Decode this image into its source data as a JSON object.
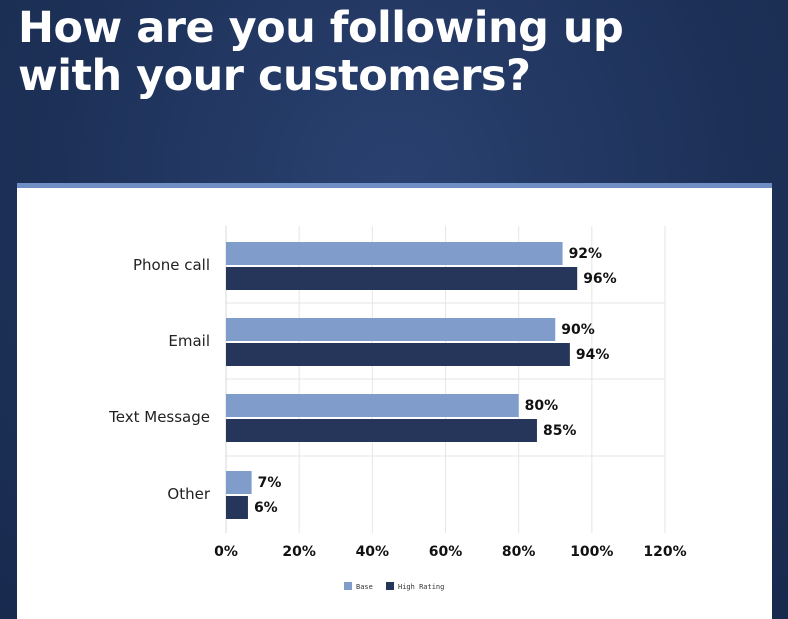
{
  "page": {
    "title_line1": "How are you following up",
    "title_line2": "with your customers?"
  },
  "colors": {
    "base": "#7f9ccb",
    "high_rating": "#26365a",
    "grid": "#e6e6e6"
  },
  "chart_data": {
    "type": "bar",
    "orientation": "horizontal",
    "categories": [
      "Phone call",
      "Email",
      "Text Message",
      "Other"
    ],
    "series": [
      {
        "name": "Base",
        "values": [
          92,
          90,
          80,
          7
        ],
        "labels": [
          "92%",
          "90%",
          "80%",
          "7%"
        ]
      },
      {
        "name": "High Rating",
        "values": [
          96,
          94,
          85,
          6
        ],
        "labels": [
          "96%",
          "94%",
          "85%",
          "6%"
        ]
      }
    ],
    "xlim": [
      0,
      120
    ],
    "xticks": [
      0,
      20,
      40,
      60,
      80,
      100,
      120
    ],
    "xtick_labels": [
      "0%",
      "20%",
      "40%",
      "60%",
      "80%",
      "100%",
      "120%"
    ],
    "grid": true,
    "legend_position": "bottom-center"
  }
}
